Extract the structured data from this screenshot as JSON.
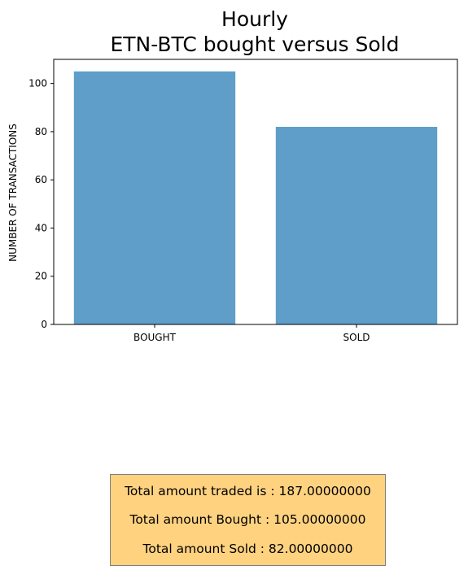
{
  "chart_data": {
    "type": "bar",
    "title_lines": [
      "Hourly",
      "ETN-BTC bought versus Sold"
    ],
    "categories": [
      "BOUGHT",
      "SOLD"
    ],
    "values": [
      105,
      82
    ],
    "xlabel": "",
    "ylabel": "NUMBER OF TRANSACTIONS",
    "ylim": [
      0,
      110
    ],
    "yticks": [
      0,
      20,
      40,
      60,
      80,
      100
    ],
    "grid": false,
    "bar_color": "#5f9ec9"
  },
  "summary": {
    "box_color": "#ffd280",
    "lines": [
      "Total amount traded is : 187.00000000",
      "Total amount Bought : 105.00000000",
      "Total amount Sold : 82.00000000"
    ]
  }
}
